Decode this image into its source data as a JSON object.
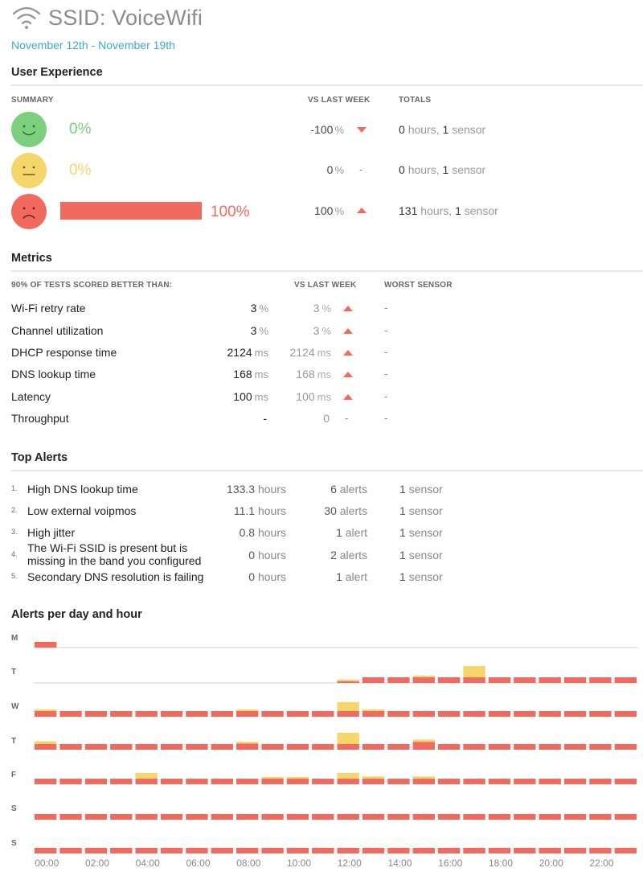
{
  "header": {
    "title": "SSID: VoiceWifi",
    "date_range": "November 12th - November 19th",
    "icon": "wifi-icon"
  },
  "colors": {
    "good": "#7ccf7c",
    "neutral": "#f5d66a",
    "bad": "#f06a60",
    "accent": "#3fa9c8"
  },
  "user_experience": {
    "title": "User Experience",
    "headers": {
      "summary": "SUMMARY",
      "vs_last_week": "VS LAST WEEK",
      "totals": "TOTALS"
    },
    "rows": [
      {
        "face": "happy-face-icon",
        "percent": "0%",
        "share": 0,
        "vs_value": "-100",
        "vs_unit": "%",
        "trend": "down",
        "hours": "0",
        "hours_unit": "hours,",
        "sensors": "1",
        "sensors_unit": "sensor"
      },
      {
        "face": "neutral-face-icon",
        "percent": "0%",
        "share": 0,
        "vs_value": "0",
        "vs_unit": "%",
        "trend": "flat",
        "trend_text": "-",
        "hours": "0",
        "hours_unit": "hours,",
        "sensors": "1",
        "sensors_unit": "sensor"
      },
      {
        "face": "sad-face-icon",
        "percent": "100%",
        "share": 1.0,
        "vs_value": "100",
        "vs_unit": "%",
        "trend": "up",
        "hours": "131",
        "hours_unit": "hours,",
        "sensors": "1",
        "sensors_unit": "sensor"
      }
    ]
  },
  "metrics": {
    "title": "Metrics",
    "headers": {
      "label": "90% OF TESTS SCORED BETTER THAN:",
      "vs_last_week": "VS LAST WEEK",
      "worst_sensor": "WORST SENSOR"
    },
    "rows": [
      {
        "label": "Wi-Fi retry rate",
        "value": "3",
        "unit": "%",
        "prev": "3",
        "prev_unit": "%",
        "trend": "up",
        "worst": "-"
      },
      {
        "label": "Channel utilization",
        "value": "3",
        "unit": "%",
        "prev": "3",
        "prev_unit": "%",
        "trend": "up",
        "worst": "-"
      },
      {
        "label": "DHCP response time",
        "value": "2124",
        "unit": "ms",
        "prev": "2124",
        "prev_unit": "ms",
        "trend": "up",
        "worst": "-"
      },
      {
        "label": "DNS lookup time",
        "value": "168",
        "unit": "ms",
        "prev": "168",
        "prev_unit": "ms",
        "trend": "up",
        "worst": "-"
      },
      {
        "label": "Latency",
        "value": "100",
        "unit": "ms",
        "prev": "100",
        "prev_unit": "ms",
        "trend": "up",
        "worst": "-"
      },
      {
        "label": "Throughput",
        "value": "-",
        "unit": "",
        "prev": "0",
        "prev_unit": "",
        "trend": "flat",
        "trend_text": "-",
        "worst": "-"
      }
    ]
  },
  "top_alerts": {
    "title": "Top Alerts",
    "rows": [
      {
        "num": "1.",
        "label": "High DNS lookup time",
        "hours": "133.3",
        "hours_unit": "hours",
        "alerts": "6",
        "alerts_unit": "alerts",
        "sensors": "1",
        "sensors_unit": "sensor"
      },
      {
        "num": "2.",
        "label": "Low external voipmos",
        "hours": "11.1",
        "hours_unit": "hours",
        "alerts": "30",
        "alerts_unit": "alerts",
        "sensors": "1",
        "sensors_unit": "sensor"
      },
      {
        "num": "3.",
        "label": "High jitter",
        "hours": "0.8",
        "hours_unit": "hours",
        "alerts": "1",
        "alerts_unit": "alert",
        "sensors": "1",
        "sensors_unit": "sensor"
      },
      {
        "num": "4.",
        "label_line1": "The Wi-Fi SSID is present but is",
        "label_line2": "missing in the band you configured",
        "hours": "0",
        "hours_unit": "hours",
        "alerts": "2",
        "alerts_unit": "alerts",
        "sensors": "1",
        "sensors_unit": "sensor"
      },
      {
        "num": "5.",
        "label": "Secondary DNS resolution is failing",
        "hours": "0",
        "hours_unit": "hours",
        "alerts": "1",
        "alerts_unit": "alert",
        "sensors": "1",
        "sensors_unit": "sensor"
      }
    ]
  },
  "chart_data": {
    "type": "bar",
    "title": "Alerts per day and hour",
    "days": [
      "M",
      "T",
      "W",
      "T",
      "F",
      "S",
      "S"
    ],
    "x_tick_labels": [
      "00:00",
      "02:00",
      "04:00",
      "06:00",
      "08:00",
      "10:00",
      "12:00",
      "14:00",
      "16:00",
      "18:00",
      "20:00",
      "22:00"
    ],
    "series_colors": {
      "bad": "#f06a60",
      "neutral": "#f5d66a"
    },
    "bad": [
      [
        1,
        0,
        0,
        0,
        0,
        0,
        0,
        0,
        0,
        0,
        0,
        0,
        0,
        0,
        0,
        0,
        0,
        0,
        0,
        0,
        0,
        0,
        0,
        0
      ],
      [
        0,
        0,
        0,
        0,
        0,
        0,
        0,
        0,
        0,
        0,
        0,
        0,
        0.3,
        1,
        1,
        1,
        1,
        1,
        1,
        1,
        1,
        1,
        1,
        1
      ],
      [
        1,
        1,
        1,
        1,
        1,
        1,
        1,
        1,
        1,
        1,
        1,
        1,
        1,
        1,
        1,
        1,
        1,
        1,
        1,
        1,
        1,
        1,
        1,
        1
      ],
      [
        1,
        1,
        1,
        1,
        1,
        1,
        1,
        1,
        1.1,
        1,
        1,
        1,
        1,
        1,
        1,
        1.4,
        1,
        1,
        1,
        1,
        1,
        1,
        1,
        1
      ],
      [
        1,
        1,
        1,
        1,
        1,
        1,
        1,
        1,
        1,
        1,
        1,
        1,
        1,
        1,
        1,
        1,
        1,
        1,
        1,
        1,
        1,
        1,
        1,
        1
      ],
      [
        1,
        1,
        1,
        1,
        1,
        1,
        1,
        1,
        1,
        1,
        1,
        1,
        1,
        1,
        1,
        1,
        1,
        1,
        1,
        1,
        1,
        1,
        1,
        1
      ],
      [
        1,
        1,
        1,
        1,
        1,
        1,
        1,
        1,
        1,
        1,
        1,
        1,
        1,
        1,
        1,
        1,
        1,
        1,
        1,
        1,
        1,
        1,
        1,
        1
      ]
    ],
    "neutral": [
      [
        0,
        0,
        0,
        0,
        0,
        0,
        0,
        0,
        0,
        0,
        0,
        0,
        0,
        0,
        0,
        0,
        0,
        0,
        0,
        0,
        0,
        0,
        0,
        0
      ],
      [
        0,
        0,
        0,
        0,
        0,
        0,
        0,
        0,
        0,
        0,
        0,
        0,
        0.3,
        0,
        0,
        0.3,
        0,
        2.0,
        0,
        0,
        0,
        0,
        0,
        0
      ],
      [
        0.3,
        0,
        0,
        0,
        0,
        0,
        0,
        0,
        0.3,
        0,
        0,
        0,
        1.6,
        0.3,
        0,
        0,
        0,
        0,
        0,
        0,
        0,
        0,
        0,
        0
      ],
      [
        0.5,
        0,
        0,
        0,
        0,
        0,
        0,
        0,
        0.3,
        0,
        0,
        0,
        2.0,
        0,
        0,
        0.4,
        0,
        0,
        0,
        0,
        0,
        0,
        0,
        0
      ],
      [
        0,
        0,
        0,
        0,
        1,
        0,
        0,
        0,
        0,
        0.3,
        0.3,
        0,
        1,
        0.4,
        0,
        0.4,
        0,
        0,
        0,
        0,
        0,
        0,
        0,
        0
      ],
      [
        0,
        0,
        0,
        0,
        0,
        0,
        0,
        0,
        0,
        0,
        0,
        0,
        0,
        0,
        0,
        0,
        0,
        0,
        0,
        0,
        0,
        0,
        0,
        0
      ],
      [
        0,
        0,
        0,
        0,
        0,
        0,
        0,
        0,
        0,
        0,
        0,
        0,
        0,
        0,
        0,
        0,
        0,
        0,
        0,
        0,
        0,
        0,
        0,
        0
      ]
    ]
  }
}
